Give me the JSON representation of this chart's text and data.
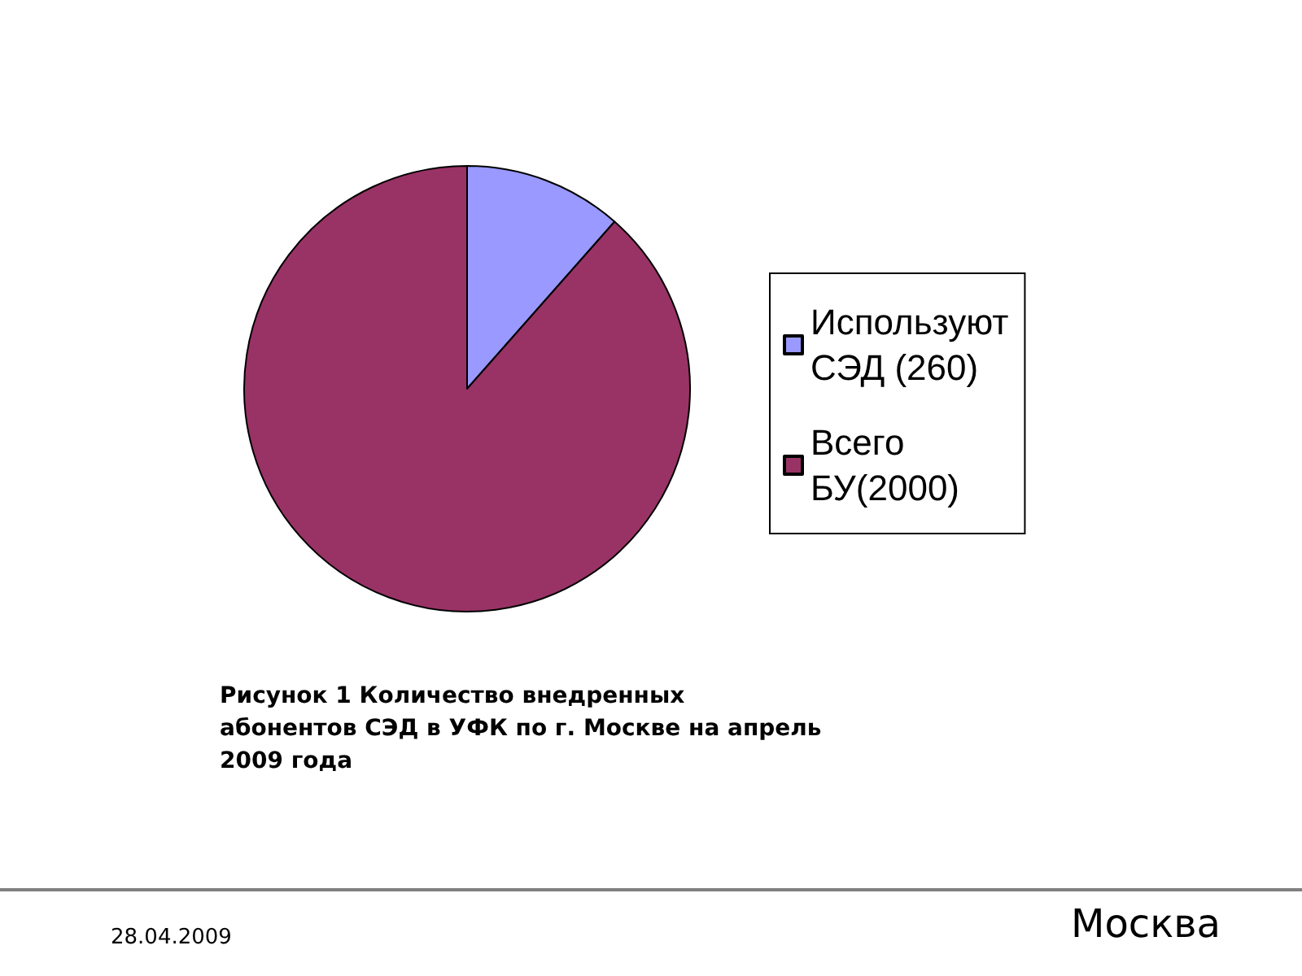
{
  "chart_data": {
    "type": "pie",
    "categories": [
      "Используют СЭД (260)",
      "Всего БУ(2000)"
    ],
    "values": [
      260,
      2000
    ],
    "colors": [
      "#9999ff",
      "#993366"
    ],
    "legend": "right",
    "annotations": [
      "Рисунок 1 Количество внедренных абонентов СЭД в УФК по г. Москве на апрель 2009 года",
      "28.04.2009",
      "Москва"
    ]
  }
}
